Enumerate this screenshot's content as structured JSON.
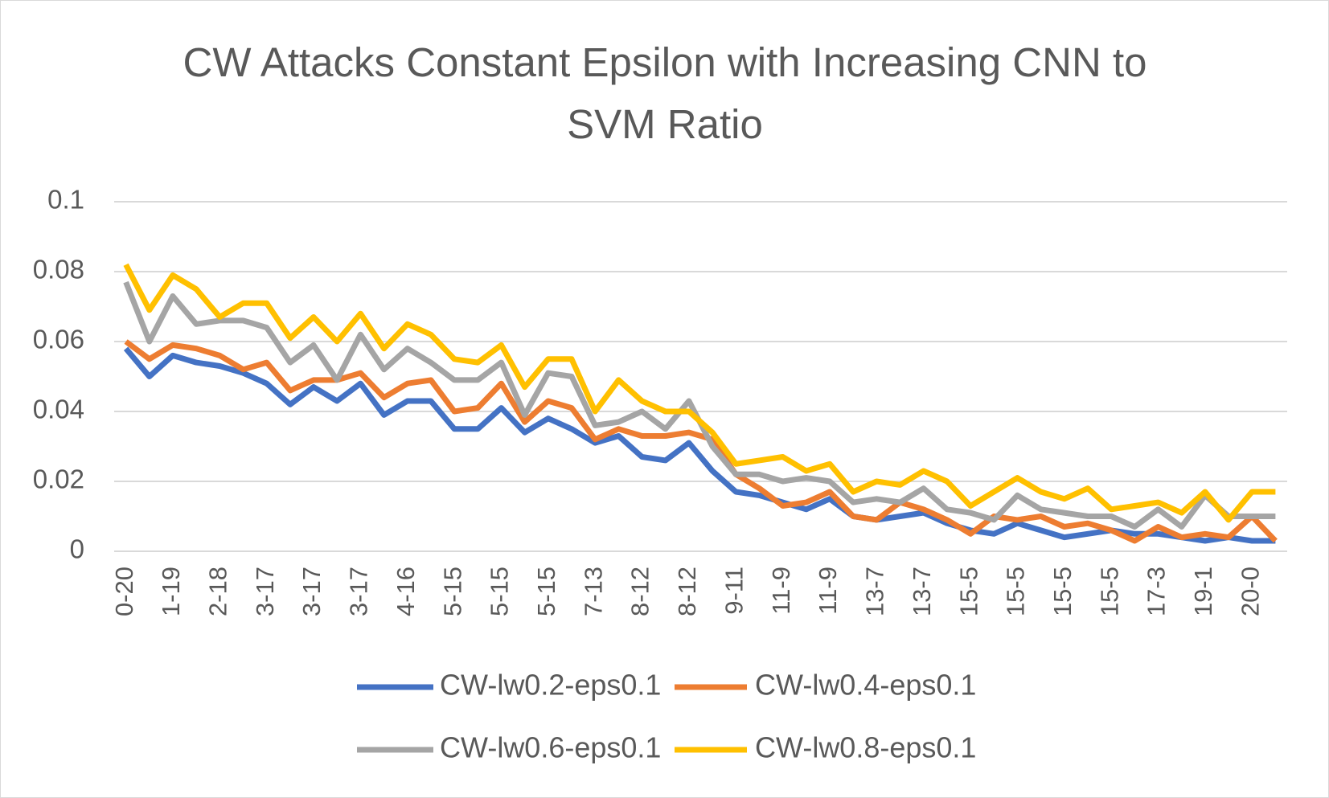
{
  "chart_data": {
    "type": "line",
    "title": "CW Attacks Constant Epsilon with Increasing CNN to SVM Ratio",
    "categories": [
      "0-20",
      null,
      "1-19",
      null,
      "2-18",
      null,
      "3-17",
      null,
      "3-17",
      null,
      "3-17",
      null,
      "4-16",
      null,
      "5-15",
      null,
      "5-15",
      null,
      "5-15",
      null,
      "7-13",
      null,
      "8-12",
      null,
      "8-12",
      null,
      "9-11",
      null,
      "11-9",
      null,
      "11-9",
      null,
      "13-7",
      null,
      "13-7",
      null,
      "15-5",
      null,
      "15-5",
      null,
      "15-5",
      null,
      "15-5",
      null,
      "17-3",
      null,
      "19-1",
      null,
      "20-0",
      null
    ],
    "series": [
      {
        "name": "CW-lw0.2-eps0.1",
        "color": "#4472c4",
        "values": [
          0.058,
          0.05,
          0.056,
          0.054,
          0.053,
          0.051,
          0.048,
          0.042,
          0.047,
          0.043,
          0.048,
          0.039,
          0.043,
          0.043,
          0.035,
          0.035,
          0.041,
          0.034,
          0.038,
          0.035,
          0.031,
          0.033,
          0.027,
          0.026,
          0.031,
          0.023,
          0.017,
          0.016,
          0.014,
          0.012,
          0.015,
          0.01,
          0.009,
          0.01,
          0.011,
          0.008,
          0.006,
          0.005,
          0.008,
          0.006,
          0.004,
          0.005,
          0.006,
          0.005,
          0.005,
          0.004,
          0.003,
          0.004,
          0.003,
          0.003
        ]
      },
      {
        "name": "CW-lw0.4-eps0.1",
        "color": "#ed7d31",
        "values": [
          0.06,
          0.055,
          0.059,
          0.058,
          0.056,
          0.052,
          0.054,
          0.046,
          0.049,
          0.049,
          0.051,
          0.044,
          0.048,
          0.049,
          0.04,
          0.041,
          0.048,
          0.037,
          0.043,
          0.041,
          0.032,
          0.035,
          0.033,
          0.033,
          0.034,
          0.032,
          0.022,
          0.018,
          0.013,
          0.014,
          0.017,
          0.01,
          0.009,
          0.014,
          0.012,
          0.009,
          0.005,
          0.01,
          0.009,
          0.01,
          0.007,
          0.008,
          0.006,
          0.003,
          0.007,
          0.004,
          0.005,
          0.004,
          0.01,
          0.003
        ]
      },
      {
        "name": "CW-lw0.6-eps0.1",
        "color": "#a5a5a5",
        "values": [
          0.077,
          0.06,
          0.073,
          0.065,
          0.066,
          0.066,
          0.064,
          0.054,
          0.059,
          0.049,
          0.062,
          0.052,
          0.058,
          0.054,
          0.049,
          0.049,
          0.054,
          0.039,
          0.051,
          0.05,
          0.036,
          0.037,
          0.04,
          0.035,
          0.043,
          0.03,
          0.022,
          0.022,
          0.02,
          0.021,
          0.02,
          0.014,
          0.015,
          0.014,
          0.018,
          0.012,
          0.011,
          0.009,
          0.016,
          0.012,
          0.011,
          0.01,
          0.01,
          0.007,
          0.012,
          0.007,
          0.016,
          0.01,
          0.01,
          0.01
        ]
      },
      {
        "name": "CW-lw0.8-eps0.1",
        "color": "#ffc000",
        "values": [
          0.082,
          0.069,
          0.079,
          0.075,
          0.067,
          0.071,
          0.071,
          0.061,
          0.067,
          0.06,
          0.068,
          0.058,
          0.065,
          0.062,
          0.055,
          0.054,
          0.059,
          0.047,
          0.055,
          0.055,
          0.04,
          0.049,
          0.043,
          0.04,
          0.04,
          0.034,
          0.025,
          0.026,
          0.027,
          0.023,
          0.025,
          0.017,
          0.02,
          0.019,
          0.023,
          0.02,
          0.013,
          0.017,
          0.021,
          0.017,
          0.015,
          0.018,
          0.012,
          0.013,
          0.014,
          0.011,
          0.017,
          0.009,
          0.017,
          0.017
        ]
      }
    ],
    "ylim": [
      0,
      0.1
    ],
    "yticks": [
      0,
      0.02,
      0.04,
      0.06,
      0.08,
      0.1
    ],
    "grid": true,
    "legend": "bottom"
  }
}
